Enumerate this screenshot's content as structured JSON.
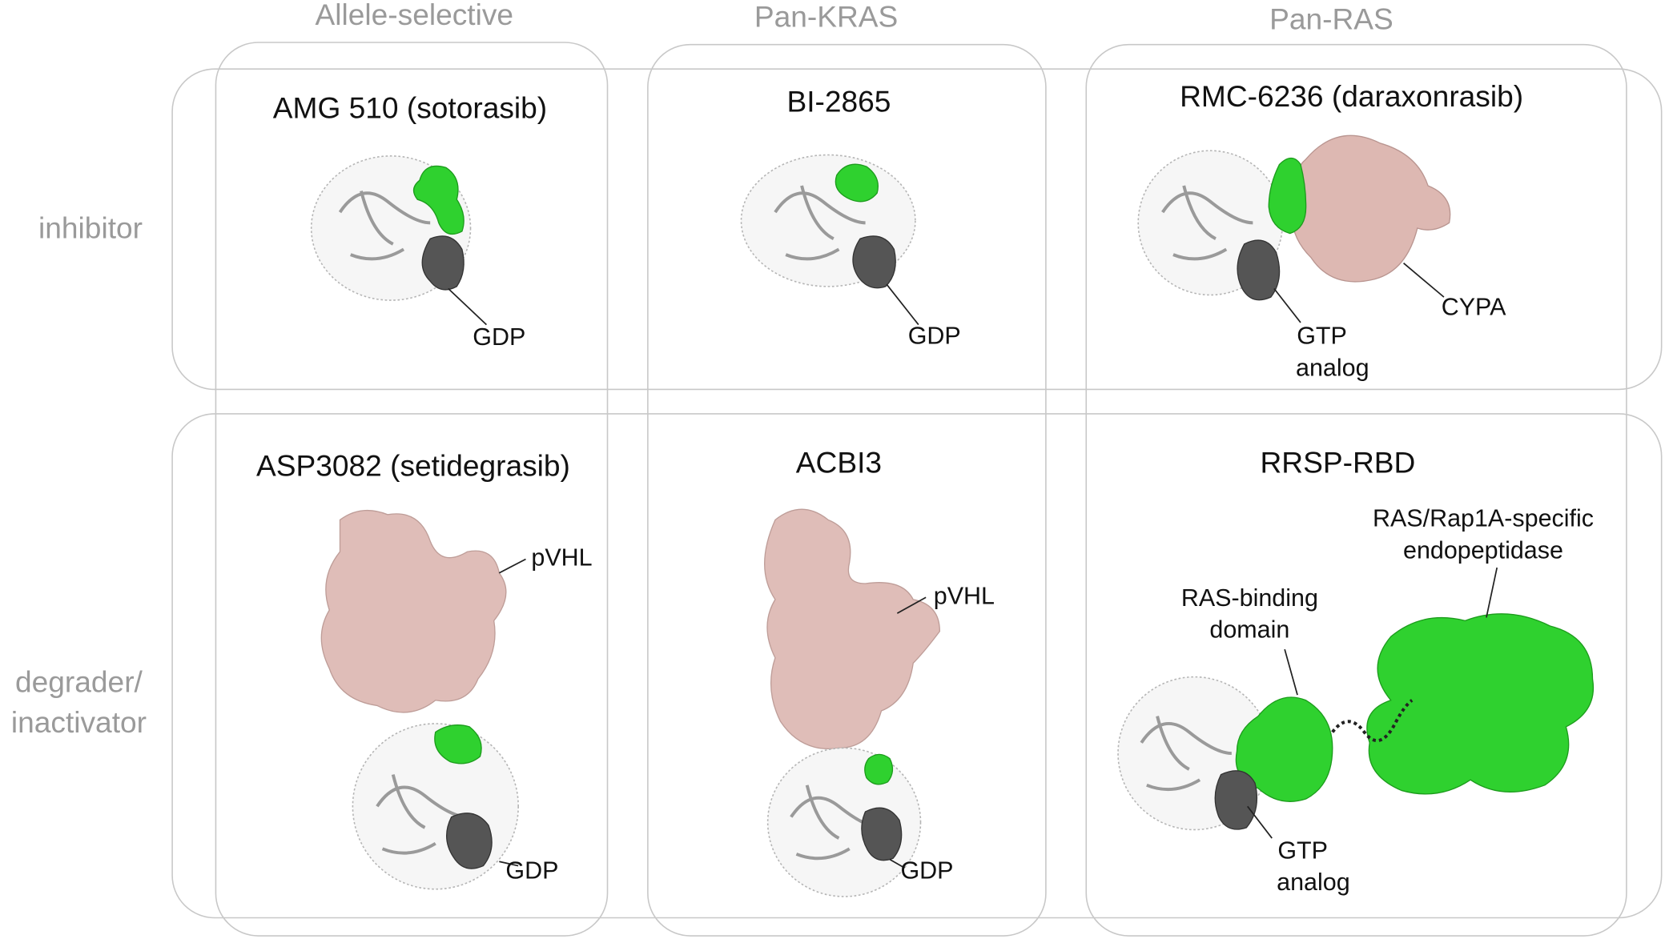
{
  "columns": [
    "Allele-selective",
    "Pan-KRAS",
    "Pan-RAS"
  ],
  "rows": [
    [
      "inhibitor"
    ],
    [
      "degrader/",
      "inactivator"
    ]
  ],
  "panels": [
    {
      "title": "AMG 510 (sotorasib)",
      "labels": [
        [
          "GDP"
        ]
      ]
    },
    {
      "title": "BI-2865",
      "labels": [
        [
          "GDP"
        ]
      ]
    },
    {
      "title": "RMC-6236 (daraxonrasib)",
      "labels": [
        [
          "GTP",
          "analog"
        ],
        [
          "CYPA"
        ]
      ]
    },
    {
      "title": "ASP3082 (setidegrasib)",
      "labels": [
        [
          "pVHL"
        ],
        [
          "GDP"
        ]
      ]
    },
    {
      "title": "ACBI3",
      "labels": [
        [
          "pVHL"
        ],
        [
          "GDP"
        ]
      ]
    },
    {
      "title": "RRSP-RBD",
      "labels": [
        [
          "RAS/Rap1A-specific",
          "endopeptidase"
        ],
        [
          "RAS-binding",
          "domain"
        ],
        [
          "GTP",
          "analog"
        ]
      ]
    }
  ]
}
